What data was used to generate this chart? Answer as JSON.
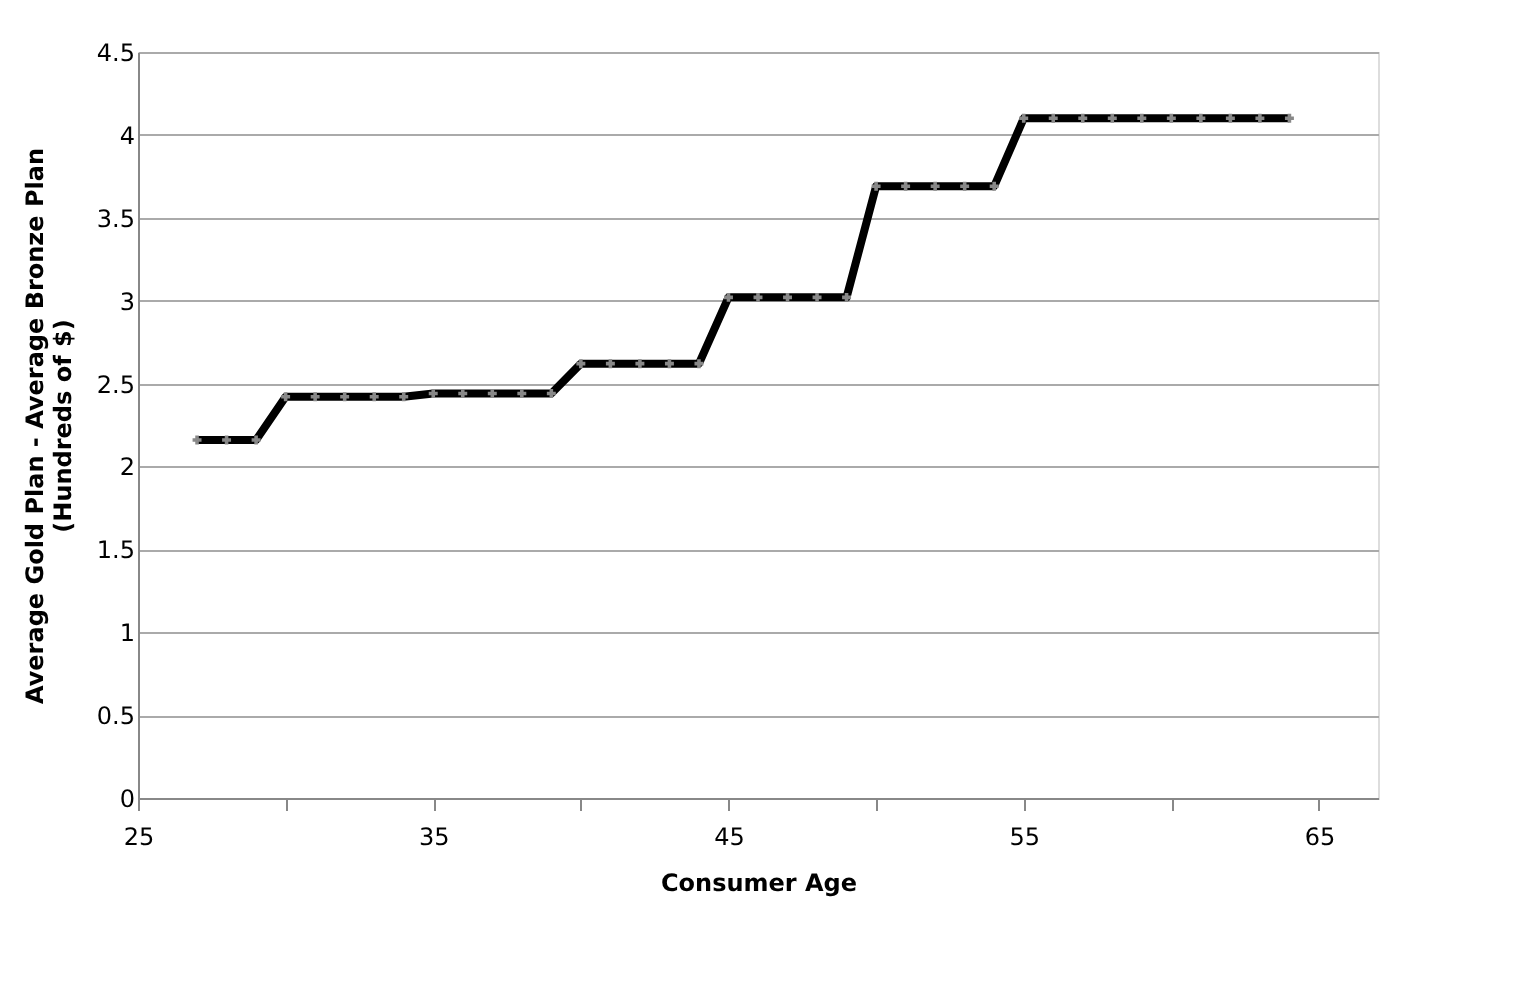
{
  "chart_data": {
    "type": "line",
    "xlabel": "Consumer Age",
    "ylabel": "Average Gold  Plan - Average Bronze Plan\n(Hundreds of $)",
    "x": [
      27,
      28,
      29,
      30,
      31,
      32,
      33,
      34,
      35,
      36,
      37,
      38,
      39,
      40,
      41,
      42,
      43,
      44,
      45,
      46,
      47,
      48,
      49,
      50,
      51,
      52,
      53,
      54,
      55,
      56,
      57,
      58,
      59,
      60,
      61,
      62,
      63,
      64
    ],
    "series": [
      {
        "color": "#000000",
        "values": [
          2.16,
          2.16,
          2.16,
          2.42,
          2.42,
          2.42,
          2.42,
          2.42,
          2.44,
          2.44,
          2.44,
          2.44,
          2.44,
          2.62,
          2.62,
          2.62,
          2.62,
          2.62,
          3.02,
          3.02,
          3.02,
          3.02,
          3.02,
          3.69,
          3.69,
          3.69,
          3.69,
          3.69,
          4.1,
          4.1,
          4.1,
          4.1,
          4.1,
          4.1,
          4.1,
          4.1,
          4.1,
          4.1
        ]
      }
    ],
    "xlim": [
      25,
      67
    ],
    "xticks": [
      25,
      {
        "value": 30,
        "label": null
      },
      35,
      {
        "value": 40,
        "label": null
      },
      45,
      {
        "value": 50,
        "label": null
      },
      55,
      {
        "value": 60,
        "label": null
      },
      65
    ],
    "ylim": [
      0,
      4.5
    ],
    "yticks": [
      0,
      0.5,
      1,
      1.5,
      2,
      2.5,
      3,
      3.5,
      4,
      4.5
    ],
    "grid": "y",
    "marker": "cross",
    "line_style": "solid"
  }
}
